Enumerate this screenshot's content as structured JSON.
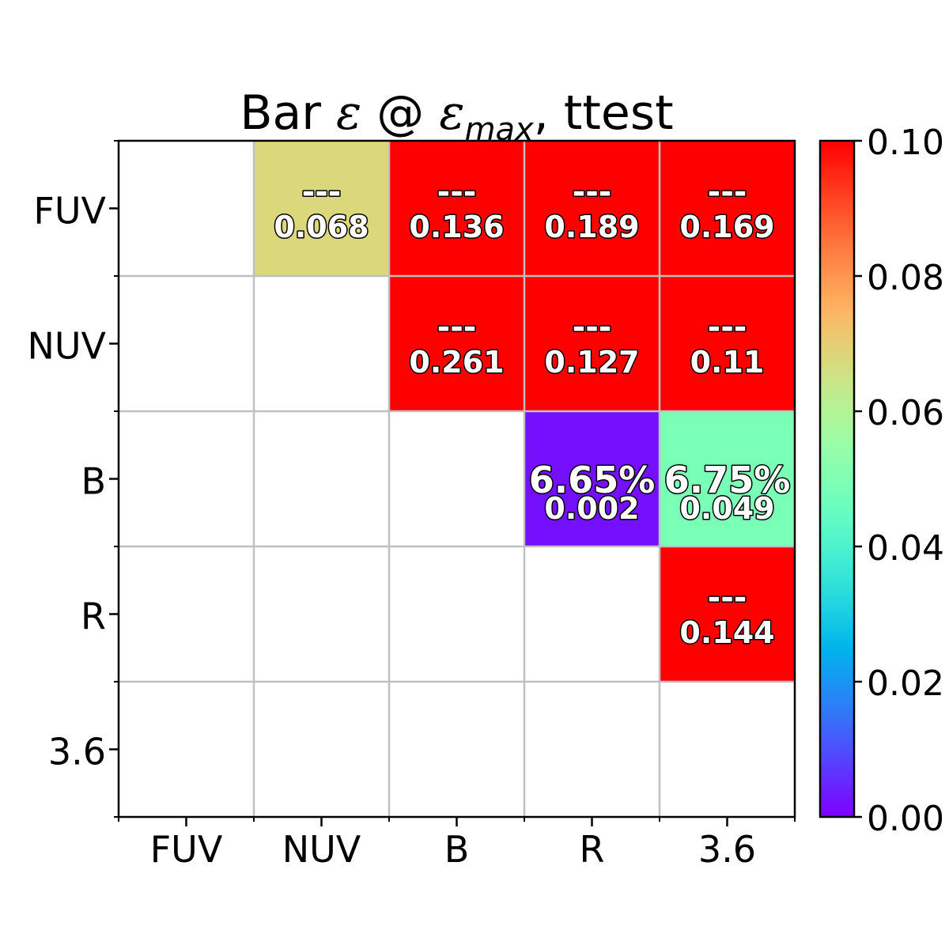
{
  "chart_data": {
    "type": "heatmap",
    "title": {
      "prefix": "Bar ",
      "symbol1": "ε",
      "middle": " @ ",
      "symbol2": "ε",
      "subscript": "max",
      "suffix": ", ttest"
    },
    "x_labels": [
      "FUV",
      "NUV",
      "B",
      "R",
      "3.6"
    ],
    "y_labels": [
      "FUV",
      "NUV",
      "B",
      "R",
      "3.6"
    ],
    "cells": [
      {
        "row": 0,
        "col": 1,
        "value": 0.068,
        "top_text": "---",
        "bottom_text": "0.068"
      },
      {
        "row": 0,
        "col": 2,
        "value": 0.136,
        "top_text": "---",
        "bottom_text": "0.136"
      },
      {
        "row": 0,
        "col": 3,
        "value": 0.189,
        "top_text": "---",
        "bottom_text": "0.189"
      },
      {
        "row": 0,
        "col": 4,
        "value": 0.169,
        "top_text": "---",
        "bottom_text": "0.169"
      },
      {
        "row": 1,
        "col": 2,
        "value": 0.261,
        "top_text": "---",
        "bottom_text": "0.261"
      },
      {
        "row": 1,
        "col": 3,
        "value": 0.127,
        "top_text": "---",
        "bottom_text": "0.127"
      },
      {
        "row": 1,
        "col": 4,
        "value": 0.11,
        "top_text": "---",
        "bottom_text": "0.11"
      },
      {
        "row": 2,
        "col": 3,
        "value": 0.002,
        "top_text": "6.65%",
        "bottom_text": "0.002"
      },
      {
        "row": 2,
        "col": 4,
        "value": 0.049,
        "top_text": "6.75%",
        "bottom_text": "0.049"
      },
      {
        "row": 3,
        "col": 4,
        "value": 0.144,
        "top_text": "---",
        "bottom_text": "0.144"
      }
    ],
    "colorbar": {
      "colormap": "rainbow",
      "vmin": 0.0,
      "vmax": 0.1,
      "ticks": [
        0.0,
        0.02,
        0.04,
        0.06,
        0.08,
        0.1
      ],
      "tick_labels": [
        "0.00",
        "0.02",
        "0.04",
        "0.06",
        "0.08",
        "0.10"
      ]
    },
    "grid": true
  }
}
